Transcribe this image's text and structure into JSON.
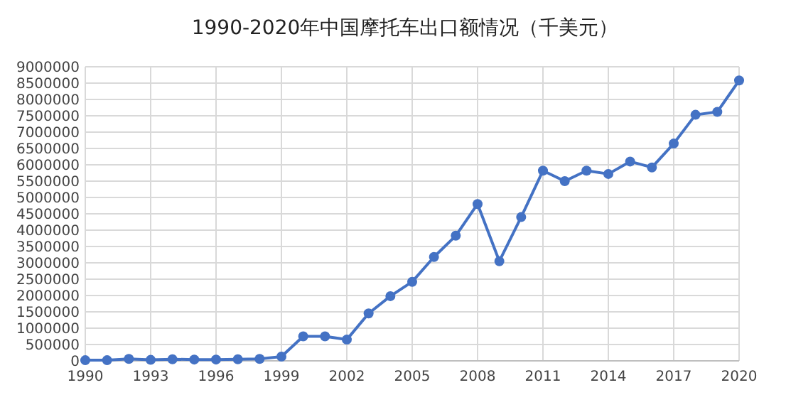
{
  "chart_data": {
    "type": "line",
    "title": "1990-2020年中国摩托车出口额情况（千美元）",
    "x": [
      1990,
      1991,
      1992,
      1993,
      1994,
      1995,
      1996,
      1997,
      1998,
      1999,
      2000,
      2001,
      2002,
      2003,
      2004,
      2005,
      2006,
      2007,
      2008,
      2009,
      2010,
      2011,
      2012,
      2013,
      2014,
      2015,
      2016,
      2017,
      2018,
      2019,
      2020
    ],
    "series": [
      {
        "color": "#4472c4",
        "values": [
          20000,
          20000,
          60000,
          30000,
          50000,
          40000,
          40000,
          50000,
          60000,
          130000,
          750000,
          750000,
          650000,
          1450000,
          1980000,
          2420000,
          3180000,
          3830000,
          4800000,
          3050000,
          4400000,
          5820000,
          5500000,
          5820000,
          5720000,
          6100000,
          5920000,
          6650000,
          7530000,
          7620000,
          8580000
        ]
      }
    ],
    "xlim": [
      1990,
      2020
    ],
    "xticks": [
      1990,
      1993,
      1996,
      1999,
      2002,
      2005,
      2008,
      2011,
      2014,
      2017,
      2020
    ],
    "ylim": [
      0,
      9000000
    ],
    "yticks": [
      0,
      500000,
      1000000,
      1500000,
      2000000,
      2500000,
      3000000,
      3500000,
      4000000,
      4500000,
      5000000,
      5500000,
      6000000,
      6500000,
      7000000,
      7500000,
      8000000,
      8500000,
      9000000
    ],
    "grid": true,
    "marker": "circle",
    "line_style": "solid"
  }
}
